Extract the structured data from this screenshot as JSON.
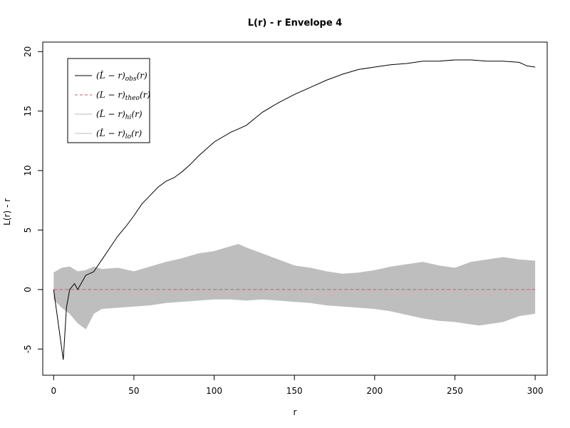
{
  "chart_data": {
    "type": "line",
    "title": "L(r) - r Envelope 4",
    "xlabel": "r",
    "ylabel": "L(r) - r",
    "xlim": [
      -6.8,
      307.5
    ],
    "ylim": [
      -7.2,
      20.8
    ],
    "xticks": [
      0,
      50,
      100,
      150,
      200,
      250,
      300
    ],
    "yticks": [
      -5,
      0,
      5,
      10,
      15,
      20
    ],
    "grid": false,
    "legend_position": "top-left",
    "legend": [
      {
        "label": "(L̂ − r)",
        "subscript": "obs",
        "suffix": "(r)",
        "style": "solid",
        "color": "#000000"
      },
      {
        "label": "(L − r)",
        "subscript": "theo",
        "suffix": "(r)",
        "style": "dashed",
        "color": "#DF536B"
      },
      {
        "label": "(L̂ − r)",
        "subscript": "hi",
        "suffix": "(r)",
        "style": "solid",
        "color": "#BEBEBE"
      },
      {
        "label": "(L̂ − r)",
        "subscript": "lo",
        "suffix": "(r)",
        "style": "solid",
        "color": "#BEBEBE"
      }
    ],
    "series": [
      {
        "name": "obs",
        "color": "#000000",
        "x": [
          0,
          3,
          6,
          8,
          10,
          13,
          15,
          20,
          25,
          30,
          35,
          40,
          45,
          50,
          55,
          60,
          65,
          70,
          75,
          80,
          85,
          90,
          95,
          100,
          110,
          120,
          130,
          140,
          150,
          160,
          170,
          180,
          190,
          200,
          210,
          220,
          230,
          240,
          250,
          260,
          270,
          280,
          290,
          295,
          300
        ],
        "y": [
          0,
          -3,
          -5.9,
          -1.5,
          0,
          0.5,
          0,
          1.2,
          1.5,
          2.5,
          3.5,
          4.5,
          5.3,
          6.2,
          7.2,
          7.9,
          8.6,
          9.1,
          9.4,
          9.9,
          10.5,
          11.2,
          11.8,
          12.4,
          13.2,
          13.8,
          14.9,
          15.7,
          16.4,
          17.0,
          17.6,
          18.1,
          18.5,
          18.7,
          18.9,
          19.0,
          19.2,
          19.2,
          19.3,
          19.3,
          19.2,
          19.2,
          19.1,
          18.8,
          18.7
        ]
      },
      {
        "name": "theo",
        "color": "#DF536B",
        "x": [
          0,
          300
        ],
        "y": [
          0,
          0
        ]
      },
      {
        "name": "hi",
        "color": "#BEBEBE",
        "x": [
          0,
          5,
          10,
          15,
          20,
          25,
          30,
          40,
          50,
          60,
          70,
          80,
          90,
          100,
          110,
          115,
          120,
          130,
          140,
          150,
          160,
          170,
          180,
          190,
          200,
          210,
          220,
          230,
          240,
          250,
          260,
          270,
          280,
          290,
          300
        ],
        "y": [
          1.4,
          1.8,
          1.9,
          1.5,
          1.6,
          1.9,
          1.7,
          1.8,
          1.5,
          1.9,
          2.3,
          2.6,
          3.0,
          3.2,
          3.6,
          3.8,
          3.5,
          3.0,
          2.5,
          2.0,
          1.8,
          1.5,
          1.3,
          1.4,
          1.6,
          1.9,
          2.1,
          2.3,
          2.0,
          1.8,
          2.3,
          2.5,
          2.7,
          2.5,
          2.4
        ]
      },
      {
        "name": "lo",
        "color": "#BEBEBE",
        "x": [
          0,
          5,
          10,
          15,
          20,
          25,
          30,
          40,
          50,
          60,
          70,
          80,
          90,
          100,
          110,
          120,
          130,
          140,
          150,
          160,
          170,
          180,
          190,
          200,
          210,
          220,
          230,
          240,
          250,
          260,
          265,
          270,
          280,
          290,
          300
        ],
        "y": [
          -0.8,
          -1.5,
          -2.0,
          -2.8,
          -3.3,
          -2.0,
          -1.6,
          -1.5,
          -1.4,
          -1.3,
          -1.1,
          -1.0,
          -0.9,
          -0.8,
          -0.8,
          -0.9,
          -0.8,
          -0.9,
          -1.0,
          -1.1,
          -1.3,
          -1.4,
          -1.5,
          -1.6,
          -1.8,
          -2.1,
          -2.4,
          -2.6,
          -2.7,
          -2.9,
          -3.0,
          -2.9,
          -2.7,
          -2.2,
          -2.0
        ]
      }
    ]
  }
}
